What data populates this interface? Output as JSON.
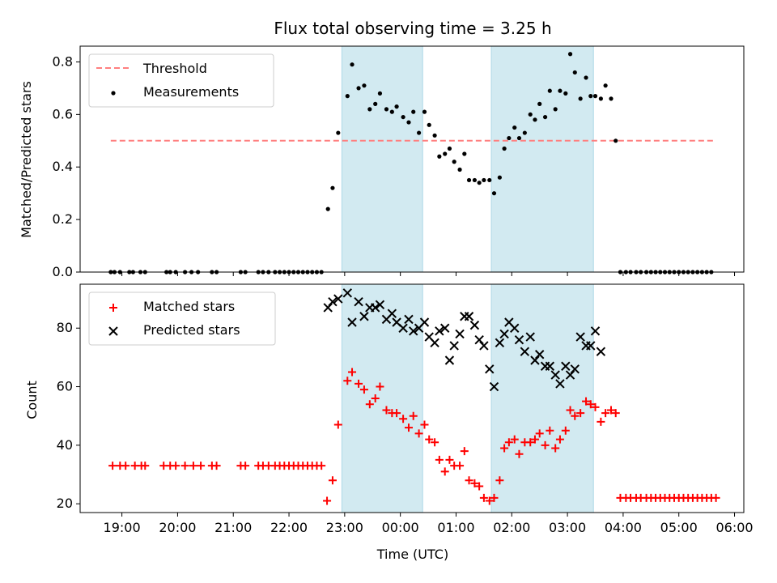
{
  "title": "Flux total observing time = 3.25 h",
  "xlabel": "Time (UTC)",
  "x_ticks": [
    "19:00",
    "20:00",
    "21:00",
    "22:00",
    "23:00",
    "00:00",
    "01:00",
    "02:00",
    "03:00",
    "04:00",
    "05:00",
    "06:00"
  ],
  "colors": {
    "threshold": "#ff7f7f",
    "shade": "#add8e6",
    "matched": "#ff0000",
    "predicted": "#000000"
  },
  "chart_data": [
    {
      "type": "scatter",
      "ylabel": "Matched/Predicted stars",
      "ylim": [
        0,
        0.86
      ],
      "y_ticks": [
        "0.0",
        "0.2",
        "0.4",
        "0.6",
        "0.8"
      ],
      "xlim": [
        "18:15",
        "06:10"
      ],
      "shaded_intervals": [
        [
          "22:57",
          "00:24"
        ],
        [
          "01:38",
          "03:28"
        ]
      ],
      "legend": {
        "position": "top-left",
        "entries": [
          "Threshold",
          "Measurements"
        ]
      },
      "threshold": {
        "name": "Threshold",
        "value": 0.5,
        "x_range": [
          "18:48",
          "05:38"
        ]
      },
      "series": [
        {
          "name": "Measurements",
          "x": [
            "18:48",
            "18:52",
            "18:58",
            "19:08",
            "19:12",
            "19:20",
            "19:25",
            "19:48",
            "19:52",
            "19:58",
            "20:08",
            "20:15",
            "20:22",
            "20:37",
            "20:42",
            "21:08",
            "21:13",
            "21:27",
            "21:32",
            "21:38",
            "21:45",
            "21:50",
            "21:55",
            "22:00",
            "22:05",
            "22:10",
            "22:15",
            "22:20",
            "22:25",
            "22:30",
            "22:35",
            "22:42",
            "22:47",
            "22:53",
            "23:03",
            "23:08",
            "23:15",
            "23:21",
            "23:27",
            "23:33",
            "23:38",
            "23:45",
            "23:51",
            "23:56",
            "00:03",
            "00:09",
            "00:14",
            "00:20",
            "00:26",
            "00:31",
            "00:37",
            "00:42",
            "00:48",
            "00:53",
            "00:58",
            "01:04",
            "01:09",
            "01:14",
            "01:20",
            "01:25",
            "01:30",
            "01:36",
            "01:41",
            "01:47",
            "01:52",
            "01:57",
            "02:03",
            "02:08",
            "02:14",
            "02:20",
            "02:25",
            "02:30",
            "02:36",
            "02:41",
            "02:47",
            "02:52",
            "02:58",
            "03:03",
            "03:08",
            "03:14",
            "03:20",
            "03:25",
            "03:30",
            "03:36",
            "03:41",
            "03:47",
            "03:52",
            "03:57",
            "04:03",
            "04:08",
            "04:14",
            "04:19",
            "04:25",
            "04:30",
            "04:35",
            "04:40",
            "04:45",
            "04:50",
            "04:55",
            "05:00",
            "05:05",
            "05:10",
            "05:15",
            "05:20",
            "05:25",
            "05:30",
            "05:35"
          ],
          "values": [
            0,
            0,
            0,
            0,
            0,
            0,
            0,
            0,
            0,
            0,
            0,
            0,
            0,
            0,
            0,
            0,
            0,
            0,
            0,
            0,
            0,
            0,
            0,
            0,
            0,
            0,
            0,
            0,
            0,
            0,
            0,
            0.24,
            0.32,
            0.53,
            0.67,
            0.79,
            0.7,
            0.71,
            0.62,
            0.64,
            0.68,
            0.62,
            0.61,
            0.63,
            0.59,
            0.57,
            0.61,
            0.53,
            0.61,
            0.56,
            0.52,
            0.44,
            0.45,
            0.47,
            0.42,
            0.39,
            0.45,
            0.35,
            0.35,
            0.34,
            0.35,
            0.35,
            0.3,
            0.36,
            0.47,
            0.51,
            0.55,
            0.51,
            0.53,
            0.6,
            0.58,
            0.64,
            0.59,
            0.69,
            0.62,
            0.69,
            0.68,
            0.83,
            0.76,
            0.66,
            0.74,
            0.67,
            0.67,
            0.66,
            0.71,
            0.66,
            0.5,
            0,
            0,
            0,
            0,
            0,
            0,
            0,
            0,
            0,
            0,
            0,
            0,
            0,
            0,
            0,
            0,
            0,
            0,
            0,
            0
          ]
        }
      ]
    },
    {
      "type": "scatter",
      "ylabel": "Count",
      "ylim": [
        17,
        95
      ],
      "y_ticks": [
        "20",
        "40",
        "60",
        "80"
      ],
      "xlim": [
        "18:15",
        "06:10"
      ],
      "shaded_intervals": [
        [
          "22:57",
          "00:24"
        ],
        [
          "01:38",
          "03:28"
        ]
      ],
      "legend": {
        "position": "top-left",
        "entries": [
          "Matched stars",
          "Predicted stars"
        ]
      },
      "series": [
        {
          "name": "Matched stars",
          "marker": "plus",
          "x": [
            "18:50",
            "18:58",
            "19:04",
            "19:14",
            "19:21",
            "19:25",
            "19:45",
            "19:52",
            "19:58",
            "20:08",
            "20:17",
            "20:25",
            "20:37",
            "20:42",
            "21:08",
            "21:13",
            "21:27",
            "21:32",
            "21:38",
            "21:45",
            "21:50",
            "21:55",
            "22:00",
            "22:05",
            "22:10",
            "22:15",
            "22:20",
            "22:25",
            "22:30",
            "22:35",
            "22:41",
            "22:47",
            "22:53",
            "23:03",
            "23:08",
            "23:15",
            "23:21",
            "23:27",
            "23:33",
            "23:38",
            "23:45",
            "23:51",
            "23:56",
            "00:03",
            "00:09",
            "00:14",
            "00:20",
            "00:26",
            "00:31",
            "00:37",
            "00:42",
            "00:48",
            "00:53",
            "00:58",
            "01:04",
            "01:09",
            "01:14",
            "01:20",
            "01:25",
            "01:30",
            "01:36",
            "01:41",
            "01:47",
            "01:52",
            "01:57",
            "02:03",
            "02:08",
            "02:14",
            "02:20",
            "02:25",
            "02:30",
            "02:36",
            "02:41",
            "02:47",
            "02:52",
            "02:58",
            "03:03",
            "03:08",
            "03:14",
            "03:20",
            "03:25",
            "03:30",
            "03:36",
            "03:41",
            "03:47",
            "03:52",
            "03:57",
            "04:03",
            "04:08",
            "04:14",
            "04:19",
            "04:25",
            "04:30",
            "04:35",
            "04:40",
            "04:45",
            "04:50",
            "04:55",
            "05:00",
            "05:05",
            "05:10",
            "05:15",
            "05:20",
            "05:25",
            "05:30",
            "05:35",
            "05:40"
          ],
          "values": [
            33,
            33,
            33,
            33,
            33,
            33,
            33,
            33,
            33,
            33,
            33,
            33,
            33,
            33,
            33,
            33,
            33,
            33,
            33,
            33,
            33,
            33,
            33,
            33,
            33,
            33,
            33,
            33,
            33,
            33,
            21,
            28,
            47,
            62,
            65,
            61,
            59,
            54,
            56,
            60,
            52,
            51,
            51,
            49,
            46,
            50,
            44,
            47,
            42,
            41,
            35,
            31,
            35,
            33,
            33,
            38,
            28,
            27,
            26,
            22,
            21,
            22,
            28,
            39,
            41,
            42,
            37,
            41,
            41,
            42,
            44,
            40,
            45,
            39,
            42,
            45,
            52,
            50,
            51,
            55,
            54,
            53,
            48,
            51,
            52,
            51,
            22,
            22,
            22,
            22,
            22,
            22,
            22,
            22,
            22,
            22,
            22,
            22,
            22,
            22,
            22,
            22,
            22,
            22,
            22,
            22,
            22
          ]
        },
        {
          "name": "Predicted stars",
          "marker": "x",
          "x": [
            "22:42",
            "22:47",
            "22:53",
            "23:03",
            "23:08",
            "23:15",
            "23:21",
            "23:27",
            "23:33",
            "23:38",
            "23:45",
            "23:51",
            "23:56",
            "00:03",
            "00:09",
            "00:14",
            "00:20",
            "00:26",
            "00:31",
            "00:37",
            "00:42",
            "00:48",
            "00:53",
            "00:58",
            "01:04",
            "01:09",
            "01:14",
            "01:20",
            "01:25",
            "01:30",
            "01:36",
            "01:41",
            "01:47",
            "01:52",
            "01:57",
            "02:03",
            "02:08",
            "02:14",
            "02:20",
            "02:25",
            "02:30",
            "02:36",
            "02:41",
            "02:47",
            "02:52",
            "02:58",
            "03:03",
            "03:08",
            "03:14",
            "03:20",
            "03:25",
            "03:30",
            "03:36"
          ],
          "values": [
            87,
            89,
            90,
            92,
            82,
            89,
            84,
            87,
            87,
            88,
            83,
            85,
            82,
            80,
            83,
            79,
            80,
            82,
            77,
            75,
            79,
            80,
            69,
            74,
            78,
            84,
            84,
            81,
            76,
            74,
            66,
            60,
            75,
            78,
            82,
            80,
            76,
            72,
            77,
            69,
            71,
            67,
            67,
            64,
            61,
            67,
            64,
            66,
            77,
            74,
            74,
            79,
            72
          ]
        }
      ]
    }
  ]
}
